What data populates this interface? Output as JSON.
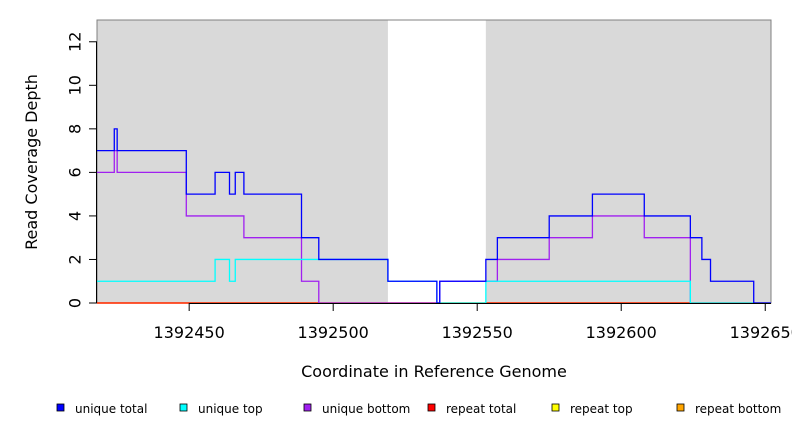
{
  "chart_data": {
    "type": "line",
    "xlabel": "Coordinate in Reference Genome",
    "ylabel": "Read Coverage Depth",
    "xlim": [
      1392418,
      1392652
    ],
    "ylim": [
      0,
      13
    ],
    "x_ticks": [
      1392450,
      1392500,
      1392550,
      1392600,
      1392650
    ],
    "x_tick_labels": [
      "1392450",
      "1392500",
      "1392550",
      "1392600",
      "1392650"
    ],
    "y_ticks": [
      0,
      2,
      4,
      6,
      8,
      10,
      12
    ],
    "y_tick_labels": [
      "0",
      "2",
      "4",
      "6",
      "8",
      "10",
      "12"
    ],
    "shaded_regions": [
      [
        1392418,
        1392519
      ],
      [
        1392553,
        1392652
      ]
    ],
    "shade_color": "#d9d9d9",
    "legend_position": "bottom",
    "series": [
      {
        "name": "unique total",
        "color": "#0000ff",
        "x": [
          1392418,
          1392424,
          1392425,
          1392449,
          1392459,
          1392464,
          1392466,
          1392469,
          1392489,
          1392495,
          1392519,
          1392536,
          1392537,
          1392553,
          1392557,
          1392575,
          1392590,
          1392608,
          1392624,
          1392628,
          1392631,
          1392646,
          1392652
        ],
        "y": [
          7,
          8,
          7,
          5,
          6,
          5,
          6,
          5,
          3,
          2,
          1,
          0,
          1,
          2,
          3,
          4,
          5,
          4,
          3,
          2,
          1,
          0,
          0
        ]
      },
      {
        "name": "unique top",
        "color": "#00ffff",
        "x": [
          1392418,
          1392459,
          1392464,
          1392466,
          1392519,
          1392536,
          1392553,
          1392624,
          1392652
        ],
        "y": [
          1,
          2,
          1,
          2,
          1,
          0,
          1,
          0,
          0
        ]
      },
      {
        "name": "unique bottom",
        "color": "#a020f0",
        "x": [
          1392418,
          1392424,
          1392425,
          1392449,
          1392469,
          1392489,
          1392495,
          1392537,
          1392557,
          1392575,
          1392590,
          1392608,
          1392624,
          1392652
        ],
        "y": [
          6,
          7,
          6,
          4,
          3,
          1,
          0,
          1,
          2,
          3,
          4,
          3,
          0,
          0
        ]
      },
      {
        "name": "repeat total",
        "color": "#ff0000",
        "x": [
          1392418,
          1392652
        ],
        "y": [
          0,
          0
        ]
      },
      {
        "name": "repeat top",
        "color": "#ffff00",
        "x": [
          1392418,
          1392652
        ],
        "y": [
          0,
          0
        ]
      },
      {
        "name": "repeat bottom",
        "color": "#ffa500",
        "x": [
          1392418,
          1392652
        ],
        "y": [
          0,
          0
        ]
      }
    ]
  }
}
